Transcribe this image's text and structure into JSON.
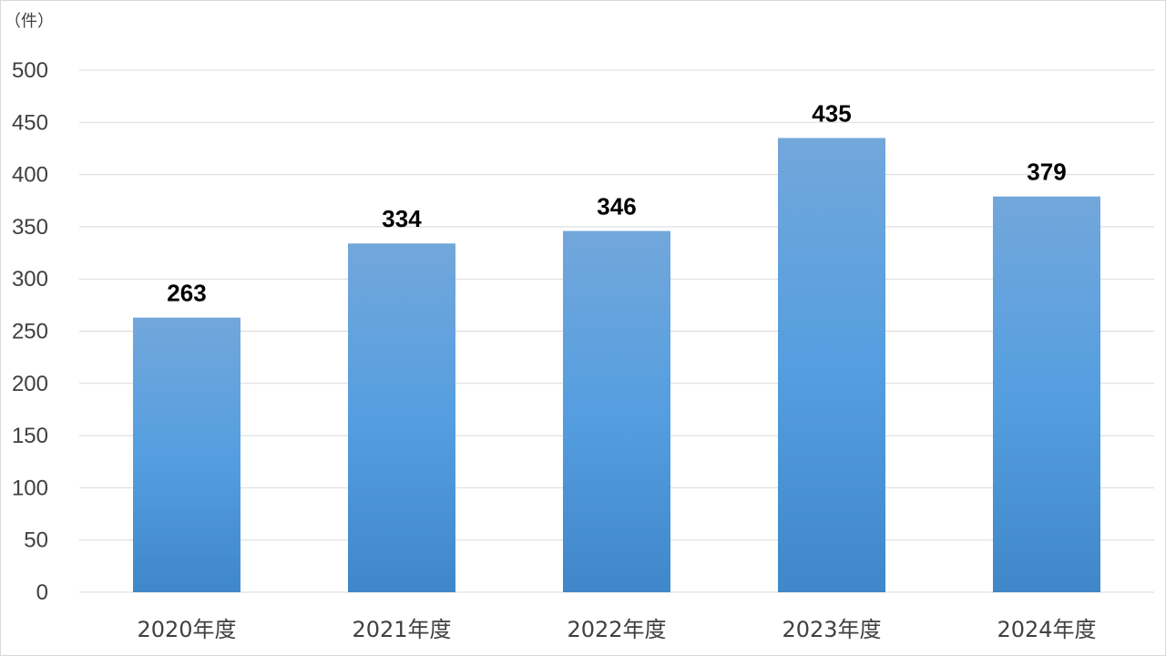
{
  "chart_data": {
    "type": "bar",
    "title": "",
    "unit_label": "（件）",
    "xlabel": "",
    "ylabel": "",
    "categories": [
      "2020年度",
      "2021年度",
      "2022年度",
      "2023年度",
      "2024年度"
    ],
    "values": [
      263,
      334,
      346,
      435,
      379
    ],
    "data_labels": [
      "263",
      "334",
      "346",
      "435",
      "379"
    ],
    "ylim": [
      0,
      500
    ],
    "yticks": [
      0,
      50,
      100,
      150,
      200,
      250,
      300,
      350,
      400,
      450,
      500
    ],
    "grid": true,
    "legend": "none",
    "colors": {
      "bar_top": "#72a7db",
      "bar_mid": "#559ee0",
      "bar_bottom": "#3f87c8",
      "gridline": "#d9d9d9",
      "axis_text": "#404040",
      "data_label": "#000000"
    }
  }
}
